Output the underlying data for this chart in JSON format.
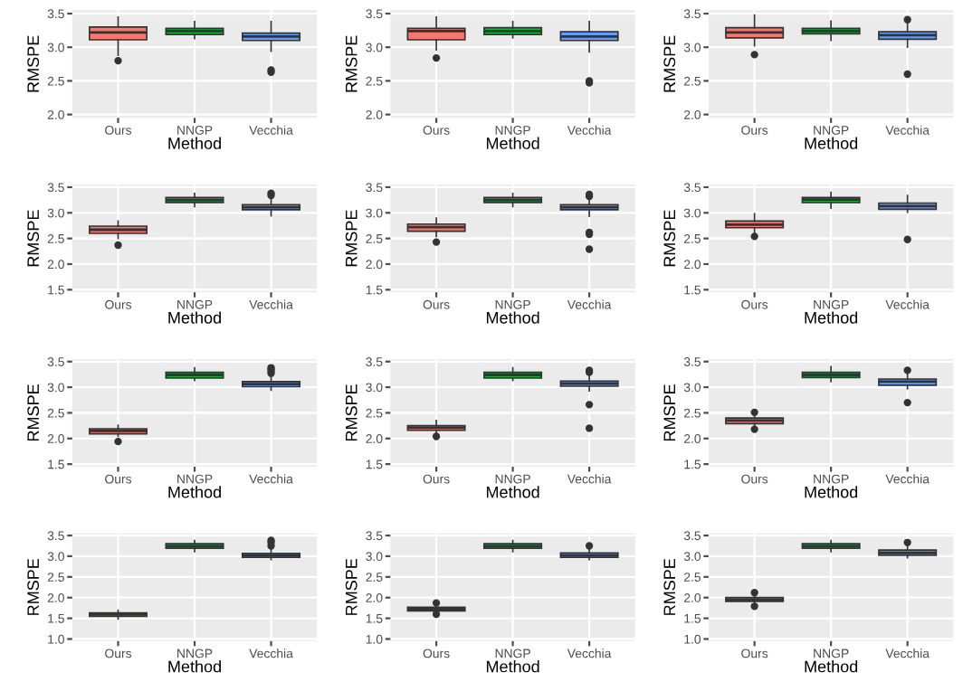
{
  "chart_data": [
    {
      "type": "box",
      "xlabel": "Method",
      "ylabel": "RMSPE",
      "categories": [
        "Ours",
        "NNGP",
        "Vecchia"
      ],
      "colors": [
        "#f8766d",
        "#00ba38",
        "#619cff"
      ],
      "ylim": [
        1.95,
        3.55
      ],
      "yticks": [
        {
          "value": 2,
          "label": "2.0"
        },
        2.5,
        {
          "value": 3,
          "label": "3.0"
        },
        3.5
      ],
      "grid": true,
      "boxes": [
        {
          "low": 2.88,
          "q1": 3.11,
          "median": 3.22,
          "q3": 3.3,
          "high": 3.45,
          "outliers": [
            2.8
          ]
        },
        {
          "low": 3.13,
          "q1": 3.19,
          "median": 3.24,
          "q3": 3.28,
          "high": 3.38
        },
        {
          "low": 2.94,
          "q1": 3.1,
          "median": 3.16,
          "q3": 3.21,
          "high": 3.38,
          "outliers": [
            2.66,
            2.63
          ]
        }
      ]
    },
    {
      "type": "box",
      "xlabel": "Method",
      "ylabel": "RMSPE",
      "categories": [
        "Ours",
        "NNGP",
        "Vecchia"
      ],
      "colors": [
        "#f8766d",
        "#00ba38",
        "#619cff"
      ],
      "ylim": [
        1.95,
        3.55
      ],
      "yticks": [
        {
          "value": 2,
          "label": "2.0"
        },
        2.5,
        {
          "value": 3,
          "label": "3.0"
        },
        3.5
      ],
      "grid": true,
      "boxes": [
        {
          "low": 2.96,
          "q1": 3.11,
          "median": 3.24,
          "q3": 3.28,
          "high": 3.45,
          "outliers": [
            2.84
          ]
        },
        {
          "low": 3.14,
          "q1": 3.19,
          "median": 3.24,
          "q3": 3.29,
          "high": 3.38
        },
        {
          "low": 2.93,
          "q1": 3.1,
          "median": 3.16,
          "q3": 3.23,
          "high": 3.38,
          "outliers": [
            2.5,
            2.47
          ]
        }
      ]
    },
    {
      "type": "box",
      "xlabel": "Method",
      "ylabel": "RMSPE",
      "categories": [
        "Ours",
        "NNGP",
        "Vecchia"
      ],
      "colors": [
        "#f8766d",
        "#00ba38",
        "#619cff"
      ],
      "ylim": [
        1.95,
        3.55
      ],
      "yticks": [
        {
          "value": 2,
          "label": "2.0"
        },
        2.5,
        {
          "value": 3,
          "label": "3.0"
        },
        3.5
      ],
      "grid": true,
      "boxes": [
        {
          "low": 3.02,
          "q1": 3.14,
          "median": 3.22,
          "q3": 3.29,
          "high": 3.48,
          "outliers": [
            2.89
          ]
        },
        {
          "low": 3.1,
          "q1": 3.2,
          "median": 3.24,
          "q3": 3.28,
          "high": 3.39
        },
        {
          "low": 3.0,
          "q1": 3.12,
          "median": 3.18,
          "q3": 3.23,
          "high": 3.36,
          "outliers": [
            3.41,
            2.6
          ]
        }
      ]
    },
    {
      "type": "box",
      "xlabel": "Method",
      "ylabel": "RMSPE",
      "categories": [
        "Ours",
        "NNGP",
        "Vecchia"
      ],
      "colors": [
        "#f8766d",
        "#00ba38",
        "#619cff"
      ],
      "ylim": [
        1.45,
        3.55
      ],
      "yticks": [
        1.5,
        {
          "value": 2,
          "label": "2.0"
        },
        2.5,
        {
          "value": 3,
          "label": "3.0"
        },
        3.5
      ],
      "grid": true,
      "boxes": [
        {
          "low": 2.5,
          "q1": 2.6,
          "median": 2.67,
          "q3": 2.74,
          "high": 2.84,
          "outliers": [
            2.37
          ]
        },
        {
          "low": 3.12,
          "q1": 3.2,
          "median": 3.25,
          "q3": 3.3,
          "high": 3.38
        },
        {
          "low": 2.94,
          "q1": 3.06,
          "median": 3.11,
          "q3": 3.16,
          "high": 3.27,
          "outliers": [
            3.38,
            3.34
          ]
        }
      ]
    },
    {
      "type": "box",
      "xlabel": "Method",
      "ylabel": "RMSPE",
      "categories": [
        "Ours",
        "NNGP",
        "Vecchia"
      ],
      "colors": [
        "#f8766d",
        "#00ba38",
        "#619cff"
      ],
      "ylim": [
        1.45,
        3.55
      ],
      "yticks": [
        1.5,
        {
          "value": 2,
          "label": "2.0"
        },
        2.5,
        {
          "value": 3,
          "label": "3.0"
        },
        3.5
      ],
      "grid": true,
      "boxes": [
        {
          "low": 2.54,
          "q1": 2.64,
          "median": 2.72,
          "q3": 2.78,
          "high": 2.9,
          "outliers": [
            2.43
          ]
        },
        {
          "low": 3.12,
          "q1": 3.2,
          "median": 3.25,
          "q3": 3.3,
          "high": 3.38
        },
        {
          "low": 2.93,
          "q1": 3.06,
          "median": 3.11,
          "q3": 3.16,
          "high": 3.28,
          "outliers": [
            3.36,
            3.32,
            2.62,
            2.58,
            2.29
          ]
        }
      ]
    },
    {
      "type": "box",
      "xlabel": "Method",
      "ylabel": "RMSPE",
      "categories": [
        "Ours",
        "NNGP",
        "Vecchia"
      ],
      "colors": [
        "#f8766d",
        "#00ba38",
        "#619cff"
      ],
      "ylim": [
        1.45,
        3.55
      ],
      "yticks": [
        1.5,
        {
          "value": 2,
          "label": "2.0"
        },
        2.5,
        {
          "value": 3,
          "label": "3.0"
        },
        3.5
      ],
      "grid": true,
      "boxes": [
        {
          "low": 2.61,
          "q1": 2.71,
          "median": 2.77,
          "q3": 2.84,
          "high": 2.98,
          "outliers": [
            2.54
          ]
        },
        {
          "low": 3.09,
          "q1": 3.2,
          "median": 3.26,
          "q3": 3.3,
          "high": 3.4
        },
        {
          "low": 3.01,
          "q1": 3.07,
          "median": 3.13,
          "q3": 3.19,
          "high": 3.34,
          "outliers": [
            2.48
          ]
        }
      ]
    },
    {
      "type": "box",
      "xlabel": "Method",
      "ylabel": "RMSPE",
      "categories": [
        "Ours",
        "NNGP",
        "Vecchia"
      ],
      "colors": [
        "#f8766d",
        "#00ba38",
        "#619cff"
      ],
      "ylim": [
        1.45,
        3.55
      ],
      "yticks": [
        1.5,
        {
          "value": 2,
          "label": "2.0"
        },
        2.5,
        {
          "value": 3,
          "label": "3.0"
        },
        3.5
      ],
      "grid": true,
      "boxes": [
        {
          "low": 2.04,
          "q1": 2.09,
          "median": 2.15,
          "q3": 2.19,
          "high": 2.26,
          "outliers": [
            1.94
          ]
        },
        {
          "low": 3.13,
          "q1": 3.18,
          "median": 3.24,
          "q3": 3.29,
          "high": 3.38
        },
        {
          "low": 2.94,
          "q1": 3.01,
          "median": 3.06,
          "q3": 3.11,
          "high": 3.19,
          "outliers": [
            3.38,
            3.35,
            3.31,
            3.27
          ]
        }
      ]
    },
    {
      "type": "box",
      "xlabel": "Method",
      "ylabel": "RMSPE",
      "categories": [
        "Ours",
        "NNGP",
        "Vecchia"
      ],
      "colors": [
        "#f8766d",
        "#00ba38",
        "#619cff"
      ],
      "ylim": [
        1.45,
        3.55
      ],
      "yticks": [
        1.5,
        {
          "value": 2,
          "label": "2.0"
        },
        2.5,
        {
          "value": 3,
          "label": "3.0"
        },
        3.5
      ],
      "grid": true,
      "boxes": [
        {
          "low": 2.11,
          "q1": 2.16,
          "median": 2.21,
          "q3": 2.25,
          "high": 2.35,
          "outliers": [
            2.04
          ]
        },
        {
          "low": 3.13,
          "q1": 3.18,
          "median": 3.24,
          "q3": 3.29,
          "high": 3.38
        },
        {
          "low": 2.93,
          "q1": 3.02,
          "median": 3.07,
          "q3": 3.12,
          "high": 3.21,
          "outliers": [
            3.33,
            3.29,
            2.66,
            2.2
          ]
        }
      ]
    },
    {
      "type": "box",
      "xlabel": "Method",
      "ylabel": "RMSPE",
      "categories": [
        "Ours",
        "NNGP",
        "Vecchia"
      ],
      "colors": [
        "#f8766d",
        "#00ba38",
        "#619cff"
      ],
      "ylim": [
        1.45,
        3.55
      ],
      "yticks": [
        1.5,
        {
          "value": 2,
          "label": "2.0"
        },
        2.5,
        {
          "value": 3,
          "label": "3.0"
        },
        3.5
      ],
      "grid": true,
      "boxes": [
        {
          "low": 2.24,
          "q1": 2.29,
          "median": 2.35,
          "q3": 2.4,
          "high": 2.46,
          "outliers": [
            2.51,
            2.18
          ]
        },
        {
          "low": 3.11,
          "q1": 3.19,
          "median": 3.24,
          "q3": 3.29,
          "high": 3.4
        },
        {
          "low": 2.97,
          "q1": 3.04,
          "median": 3.11,
          "q3": 3.16,
          "high": 3.27,
          "outliers": [
            3.33,
            2.7
          ]
        }
      ]
    },
    {
      "type": "box",
      "xlabel": "Method",
      "ylabel": "RMSPE",
      "categories": [
        "Ours",
        "NNGP",
        "Vecchia"
      ],
      "colors": [
        "#f8766d",
        "#00ba38",
        "#619cff"
      ],
      "ylim": [
        0.95,
        3.55
      ],
      "yticks": [
        {
          "value": 1,
          "label": "1.0"
        },
        1.5,
        {
          "value": 2,
          "label": "2.0"
        },
        2.5,
        {
          "value": 3,
          "label": "3.0"
        },
        3.5
      ],
      "grid": true,
      "boxes": [
        {
          "low": 1.48,
          "q1": 1.55,
          "median": 1.59,
          "q3": 1.63,
          "high": 1.69
        },
        {
          "low": 3.11,
          "q1": 3.19,
          "median": 3.24,
          "q3": 3.3,
          "high": 3.38
        },
        {
          "low": 2.92,
          "q1": 2.97,
          "median": 3.02,
          "q3": 3.07,
          "high": 3.17,
          "outliers": [
            3.38,
            3.33,
            3.25
          ]
        }
      ]
    },
    {
      "type": "box",
      "xlabel": "Method",
      "ylabel": "RMSPE",
      "categories": [
        "Ours",
        "NNGP",
        "Vecchia"
      ],
      "colors": [
        "#f8766d",
        "#00ba38",
        "#619cff"
      ],
      "ylim": [
        0.95,
        3.55
      ],
      "yticks": [
        {
          "value": 1,
          "label": "1.0"
        },
        1.5,
        {
          "value": 2,
          "label": "2.0"
        },
        2.5,
        {
          "value": 3,
          "label": "3.0"
        },
        3.5
      ],
      "grid": true,
      "boxes": [
        {
          "low": 1.64,
          "q1": 1.68,
          "median": 1.72,
          "q3": 1.77,
          "high": 1.79,
          "outliers": [
            1.87,
            1.6
          ]
        },
        {
          "low": 3.11,
          "q1": 3.19,
          "median": 3.24,
          "q3": 3.3,
          "high": 3.38
        },
        {
          "low": 2.92,
          "q1": 2.97,
          "median": 3.02,
          "q3": 3.08,
          "high": 3.17,
          "outliers": [
            3.25
          ]
        }
      ]
    },
    {
      "type": "box",
      "xlabel": "Method",
      "ylabel": "RMSPE",
      "categories": [
        "Ours",
        "NNGP",
        "Vecchia"
      ],
      "colors": [
        "#f8766d",
        "#00ba38",
        "#619cff"
      ],
      "ylim": [
        0.95,
        3.55
      ],
      "yticks": [
        {
          "value": 1,
          "label": "1.0"
        },
        1.5,
        {
          "value": 2,
          "label": "2.0"
        },
        2.5,
        {
          "value": 3,
          "label": "3.0"
        },
        3.5
      ],
      "grid": true,
      "boxes": [
        {
          "low": 1.85,
          "q1": 1.91,
          "median": 1.95,
          "q3": 2.0,
          "high": 2.06,
          "outliers": [
            2.12,
            1.79
          ]
        },
        {
          "low": 3.11,
          "q1": 3.19,
          "median": 3.24,
          "q3": 3.3,
          "high": 3.38
        },
        {
          "low": 2.96,
          "q1": 3.02,
          "median": 3.08,
          "q3": 3.15,
          "high": 3.27,
          "outliers": [
            3.33
          ]
        }
      ]
    }
  ]
}
